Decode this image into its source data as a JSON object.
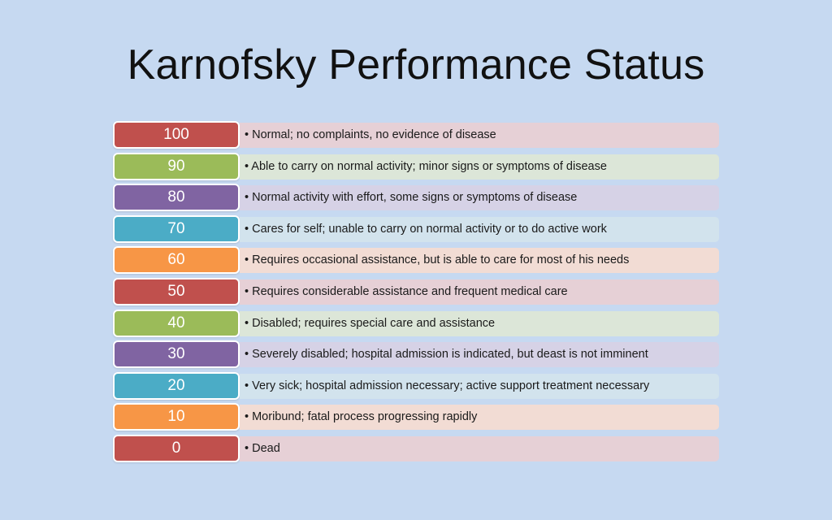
{
  "title": "Karnofsky Performance Status",
  "colors": {
    "background": "#c6d9f1",
    "red": "#c0504d",
    "green": "#9bbb59",
    "purple": "#8064a2",
    "blue": "#4bacc6",
    "orange": "#f79646"
  },
  "rows": [
    {
      "score": "100",
      "description": "• Normal; no complaints, no evidence of disease",
      "color": "#c0504d",
      "tint": "#e6d0d6"
    },
    {
      "score": "90",
      "description": "• Able to carry on normal activity; minor signs or symptoms of disease",
      "color": "#9bbb59",
      "tint": "#dce6d8"
    },
    {
      "score": "80",
      "description": "• Normal activity with effort, some signs or symptoms of disease",
      "color": "#8064a2",
      "tint": "#d6d2e6"
    },
    {
      "score": "70",
      "description": "• Cares for self; unable to carry on normal activity or to do active work",
      "color": "#4bacc6",
      "tint": "#d2e3ed"
    },
    {
      "score": "60",
      "description": "• Requires occasional assistance, but is able to care for most of his needs",
      "color": "#f79646",
      "tint": "#f2dcd4"
    },
    {
      "score": "50",
      "description": "• Requires considerable assistance and frequent medical care",
      "color": "#c0504d",
      "tint": "#e6d0d6"
    },
    {
      "score": "40",
      "description": "• Disabled; requires special care and assistance",
      "color": "#9bbb59",
      "tint": "#dce6d8"
    },
    {
      "score": "30",
      "description": "• Severely disabled; hospital admission is indicated, but deast is not imminent",
      "color": "#8064a2",
      "tint": "#d6d2e6"
    },
    {
      "score": "20",
      "description": "• Very sick; hospital admission necessary; active support treatment necessary",
      "color": "#4bacc6",
      "tint": "#d2e3ed"
    },
    {
      "score": "10",
      "description": "• Moribund; fatal process progressing rapidly",
      "color": "#f79646",
      "tint": "#f2dcd4"
    },
    {
      "score": "0",
      "description": "• Dead",
      "color": "#c0504d",
      "tint": "#e6d0d6"
    }
  ]
}
